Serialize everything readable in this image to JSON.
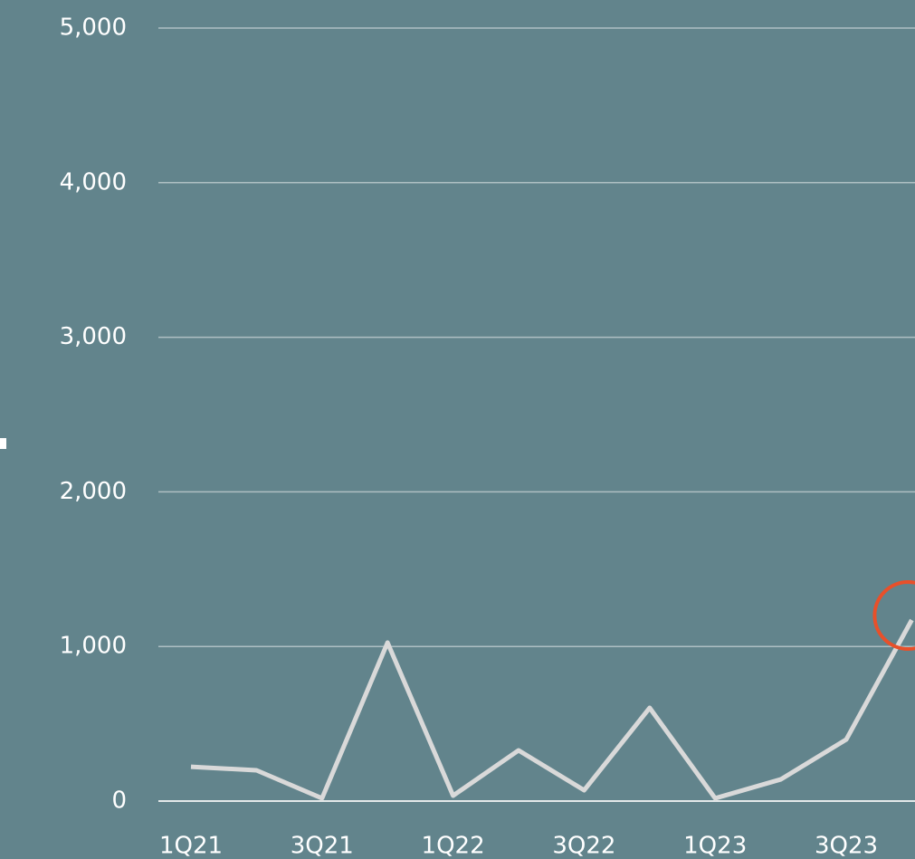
{
  "chart_data": {
    "type": "line",
    "categories": [
      "1Q21",
      null,
      "3Q21",
      null,
      "1Q22",
      null,
      "3Q22",
      null,
      "1Q23",
      null,
      "3Q23",
      null
    ],
    "series": [
      {
        "color": "#d9d9d9",
        "values": [
          222,
          199,
          18,
          1025,
          35,
          328,
          70,
          603,
          18,
          140,
          398,
          1171
        ]
      }
    ],
    "ylim": [
      0,
      5000
    ],
    "yticks": [
      {
        "value": 0,
        "label": "0"
      },
      {
        "value": 1000,
        "label": "1,000"
      },
      {
        "value": 2000,
        "label": "2,000"
      },
      {
        "value": 3000,
        "label": "3,000"
      },
      {
        "value": 4000,
        "label": "4,000"
      },
      {
        "value": 5000,
        "label": "5,000"
      }
    ],
    "grid": true
  }
}
